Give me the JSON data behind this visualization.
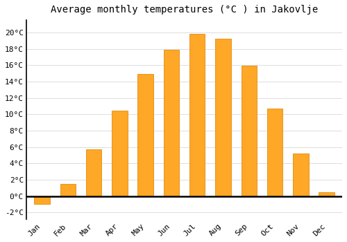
{
  "months": [
    "Jan",
    "Feb",
    "Mar",
    "Apr",
    "May",
    "Jun",
    "Jul",
    "Aug",
    "Sep",
    "Oct",
    "Nov",
    "Dec"
  ],
  "temperatures": [
    -1.0,
    1.5,
    5.7,
    10.4,
    14.9,
    17.9,
    19.8,
    19.2,
    15.9,
    10.7,
    5.2,
    0.5
  ],
  "bar_color": "#FFA726",
  "bar_edge_color": "#E69520",
  "title": "Average monthly temperatures (°C ) in Jakovlje",
  "ylim": [
    -2.8,
    21.5
  ],
  "yticks": [
    0,
    2,
    4,
    6,
    8,
    10,
    12,
    14,
    16,
    18,
    20
  ],
  "ytick_labels": [
    "0°C",
    "2°C",
    "4°C",
    "6°C",
    "8°C",
    "10°C",
    "12°C",
    "14°C",
    "16°C",
    "18°C",
    "20°C"
  ],
  "extra_yticks": [
    -2
  ],
  "extra_ytick_labels": [
    "-2°C"
  ],
  "background_color": "#ffffff",
  "grid_color": "#dddddd",
  "title_fontsize": 10,
  "tick_fontsize": 8
}
